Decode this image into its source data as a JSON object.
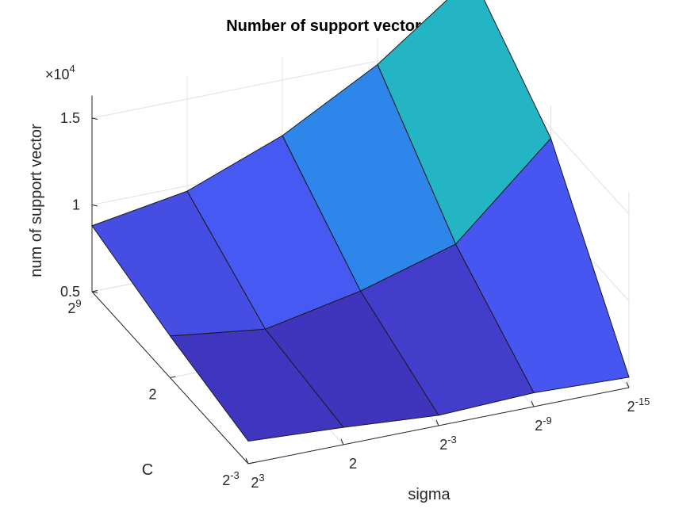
{
  "chart_data": {
    "type": "surface",
    "title": "Number of support vector genarted",
    "xlabel": "sigma",
    "ylabel": "C",
    "zlabel": "num of support vector",
    "z_multiplier": "×10",
    "z_multiplier_exp": "4",
    "x_ticks": [
      {
        "base": "2",
        "exp": "3"
      },
      {
        "base": "2",
        "exp": ""
      },
      {
        "base": "2",
        "exp": "-3"
      },
      {
        "base": "2",
        "exp": "-9"
      },
      {
        "base": "2",
        "exp": "-15"
      }
    ],
    "y_ticks": [
      {
        "base": "2",
        "exp": "-3"
      },
      {
        "base": "2",
        "exp": ""
      },
      {
        "base": "2",
        "exp": "9"
      }
    ],
    "z_ticks": [
      "0.5",
      "1",
      "1.5"
    ],
    "zlim": [
      0.5,
      1.5
    ],
    "grid": true,
    "colormap": [
      "#3d26a8",
      "#4758f3",
      "#1fa0e4",
      "#25c0b3",
      "#fbf523"
    ],
    "z_values": [
      [
        0.63,
        0.6,
        0.56,
        0.58,
        0.56
      ],
      [
        0.74,
        0.67,
        0.78,
        0.94,
        1.44
      ],
      [
        0.88,
        0.97,
        1.18,
        1.48,
        1.88
      ]
    ]
  }
}
